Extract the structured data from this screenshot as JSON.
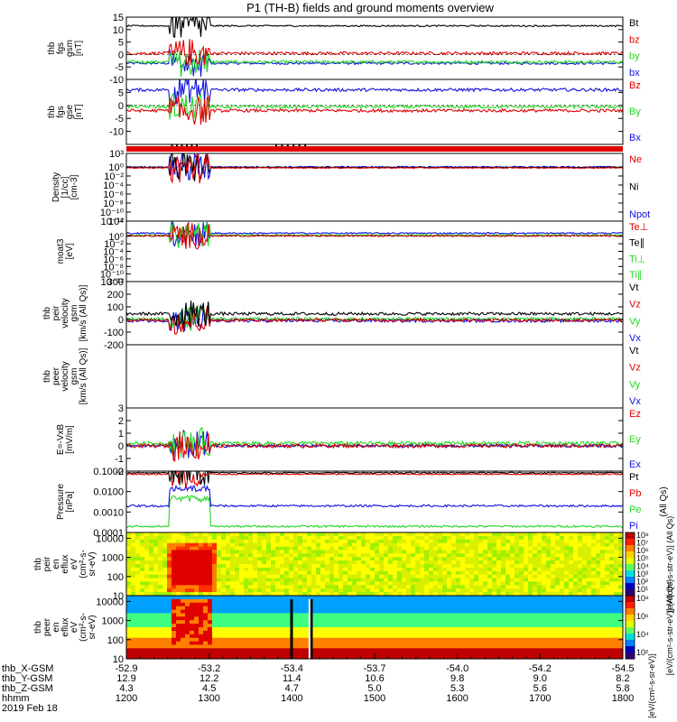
{
  "title": "P1 (TH-B) fields and ground moments overview",
  "colors": {
    "black": "#000000",
    "red": "#e00000",
    "green": "#22d822",
    "blue": "#1010e0"
  },
  "chart_data": [
    {
      "id": "fgs_gsm",
      "type": "line",
      "ylabel_lines": [
        "thb",
        "fgs",
        "gsm",
        "[nT]"
      ],
      "ylim": [
        -10,
        15
      ],
      "yticks": [
        "15",
        "10",
        "5",
        "0",
        "-5",
        "-10"
      ],
      "yticks_values": [
        15,
        10,
        5,
        0,
        -5,
        -10
      ],
      "legend": [
        {
          "label": "Bt",
          "color": "black"
        },
        {
          "label": "bz",
          "color": "red"
        },
        {
          "label": "by",
          "color": "green"
        },
        {
          "label": "bx",
          "color": "blue"
        }
      ],
      "series": [
        {
          "name": "bx",
          "color": "blue",
          "base": -3.5,
          "noise": 0.5
        },
        {
          "name": "by",
          "color": "green",
          "base": -3,
          "noise": 0.6
        },
        {
          "name": "bz",
          "color": "red",
          "base": 0.5,
          "noise": 0.6
        },
        {
          "name": "Bt",
          "color": "black",
          "base": 11.5,
          "noise": 0.3
        }
      ]
    },
    {
      "id": "fgs_gse",
      "type": "line",
      "ylabel_lines": [
        "thb",
        "fgs",
        "gse",
        "[nT]"
      ],
      "ylim": [
        -15,
        10
      ],
      "yticks": [
        "5",
        "0",
        "-5",
        "-10"
      ],
      "yticks_values": [
        5,
        0,
        -5,
        -10
      ],
      "legend": [
        {
          "label": "Bz",
          "color": "red"
        },
        {
          "label": "By",
          "color": "green"
        },
        {
          "label": "Bx",
          "color": "blue"
        }
      ],
      "series": [
        {
          "name": "Bx",
          "color": "blue",
          "base": 6,
          "noise": 0.6
        },
        {
          "name": "By",
          "color": "green",
          "base": -0.5,
          "noise": 0.6
        },
        {
          "name": "Bz",
          "color": "red",
          "base": -2,
          "noise": 0.6
        }
      ]
    },
    {
      "id": "quality_bar",
      "type": "bar",
      "ylabel_lines": [],
      "color": "red"
    },
    {
      "id": "density",
      "type": "line",
      "log": true,
      "ylabel_lines": [
        "Density",
        "[1/cc]",
        "[cm-3]"
      ],
      "ylim": [
        -12,
        3
      ],
      "yticks": [
        "10³",
        "10⁰",
        "10⁻²",
        "10⁻⁴",
        "10⁻⁶",
        "10⁻⁸",
        "10⁻¹⁰",
        "10⁻¹²"
      ],
      "yticks_values": [
        3,
        0,
        -2,
        -4,
        -6,
        -8,
        -10,
        -12
      ],
      "legend": [
        {
          "label": "Ne",
          "color": "red"
        },
        {
          "label": "Ni",
          "color": "black"
        },
        {
          "label": "Npot",
          "color": "blue"
        }
      ],
      "series": [
        {
          "name": "Npot",
          "color": "blue",
          "base": 0,
          "noise": 0.15
        },
        {
          "name": "Ni",
          "color": "black",
          "base": -0.1,
          "noise": 0.1
        },
        {
          "name": "Ne",
          "color": "red",
          "base": -0.2,
          "noise": 0.1
        }
      ]
    },
    {
      "id": "temperature",
      "type": "line",
      "log": true,
      "ylabel_lines": [
        "moat3",
        "[eV]"
      ],
      "ylim": [
        -12,
        4
      ],
      "yticks": [
        "10⁴",
        "10⁰",
        "10⁻²",
        "10⁻⁴",
        "10⁻⁶",
        "10⁻⁸",
        "10⁻¹⁰",
        "10⁻¹²"
      ],
      "yticks_values": [
        4,
        0,
        -2,
        -4,
        -6,
        -8,
        -10,
        -12
      ],
      "legend": [
        {
          "label": "Te⊥",
          "color": "red"
        },
        {
          "label": "Te∥",
          "color": "black"
        },
        {
          "label": "Ti⊥",
          "color": "green"
        },
        {
          "label": "Ti∥",
          "color": "green"
        }
      ],
      "series": [
        {
          "name": "Ti",
          "color": "blue",
          "base": 0.8,
          "noise": 0.2
        },
        {
          "name": "Te",
          "color": "green",
          "base": 0.3,
          "noise": 0.2
        },
        {
          "name": "Te2",
          "color": "red",
          "base": 0.1,
          "noise": 0.2
        }
      ]
    },
    {
      "id": "peir_velocity",
      "type": "line",
      "ylabel_lines": [
        "thb",
        "peir",
        "velocity",
        "gsm",
        "[km/s (All Qs)]"
      ],
      "ylim": [
        -200,
        300
      ],
      "yticks": [
        "300",
        "200",
        "100",
        "0",
        "-100",
        "-200"
      ],
      "yticks_values": [
        300,
        200,
        100,
        0,
        -100,
        -200
      ],
      "legend": [
        {
          "label": "Vt",
          "color": "black"
        },
        {
          "label": "Vz",
          "color": "red"
        },
        {
          "label": "Vy",
          "color": "green"
        },
        {
          "label": "Vx",
          "color": "blue"
        }
      ],
      "series": [
        {
          "name": "Vx",
          "color": "blue",
          "base": -10,
          "noise": 12
        },
        {
          "name": "Vy",
          "color": "green",
          "base": 5,
          "noise": 12
        },
        {
          "name": "Vz",
          "color": "red",
          "base": -5,
          "noise": 12
        },
        {
          "name": "Vt",
          "color": "black",
          "base": 45,
          "noise": 12
        }
      ]
    },
    {
      "id": "peer_velocity",
      "type": "empty",
      "ylabel_lines": [
        "thb",
        "peer",
        "velocity",
        "gsm",
        "[km/s (All Qs)]"
      ],
      "legend": [
        {
          "label": "Vt",
          "color": "black"
        },
        {
          "label": "Vz",
          "color": "red"
        },
        {
          "label": "Vy",
          "color": "green"
        },
        {
          "label": "Vx",
          "color": "blue"
        }
      ]
    },
    {
      "id": "efield",
      "type": "line",
      "ylabel_lines": [
        "E=-VxB",
        "[mV/m]"
      ],
      "ylim": [
        -2,
        3
      ],
      "yticks": [
        "3",
        "2",
        "1",
        "0",
        "-1",
        "-2"
      ],
      "yticks_values": [
        3,
        2,
        1,
        0,
        -1,
        -2
      ],
      "legend": [
        {
          "label": "Ez",
          "color": "red"
        },
        {
          "label": "Ey",
          "color": "green"
        },
        {
          "label": "Ex",
          "color": "blue"
        }
      ],
      "series": [
        {
          "name": "Ex",
          "color": "blue",
          "base": 0,
          "noise": 0.12
        },
        {
          "name": "Ey",
          "color": "green",
          "base": 0.2,
          "noise": 0.15
        },
        {
          "name": "Ez",
          "color": "red",
          "base": 0,
          "noise": 0.15
        }
      ]
    },
    {
      "id": "pressure",
      "type": "line",
      "log": true,
      "ylabel_lines": [
        "Pressure",
        "[nPa]"
      ],
      "ylim": [
        -4,
        -1
      ],
      "yticks": [
        "0.1000",
        "0.0100",
        "0.0010",
        "0.0001"
      ],
      "yticks_values": [
        -1,
        -2,
        -3,
        -4
      ],
      "legend": [
        {
          "label": "Pt",
          "color": "black"
        },
        {
          "label": "Pb",
          "color": "red"
        },
        {
          "label": "Pe",
          "color": "green"
        },
        {
          "label": "Pi",
          "color": "blue"
        }
      ],
      "right_label": "(All Qs)",
      "series": [
        {
          "name": "Pe",
          "color": "green",
          "base": -3.7,
          "noise": 0.05
        },
        {
          "name": "Pi",
          "color": "blue",
          "base": -2.7,
          "noise": 0.05
        },
        {
          "name": "Pb",
          "color": "red",
          "base": -1.15,
          "noise": 0.03
        },
        {
          "name": "Pt",
          "color": "black",
          "base": -1.08,
          "noise": 0.03
        }
      ]
    },
    {
      "id": "peir_eflux",
      "type": "heatmap",
      "ylabel_lines": [
        "thb",
        "peir",
        "en",
        "eflux",
        "eV",
        "(cm²-s-",
        "sr-eV)"
      ],
      "ylim": [
        1,
        4.3
      ],
      "yticks": [
        "10000",
        "1000",
        "100",
        "10"
      ],
      "yticks_values": [
        4,
        3,
        2,
        1
      ],
      "colorbar_ticks": [
        "10⁸",
        "10⁷",
        "10⁶",
        "10⁵",
        "10⁴",
        "10³",
        "10²",
        "10¹"
      ],
      "colorbar_label": "[eV/(cm²-s-str-eV)] (All Qs)"
    },
    {
      "id": "peer_eflux",
      "type": "heatmap",
      "ylabel_lines": [
        "thb",
        "peer",
        "en",
        "eflux",
        "eV",
        "(cm²-s-",
        "sr-eV)"
      ],
      "ylim": [
        1,
        4.3
      ],
      "yticks": [
        "10000",
        "1000",
        "100",
        "10"
      ],
      "yticks_values": [
        4,
        3,
        2,
        1
      ],
      "colorbar_ticks": [
        "10⁸",
        "10⁶",
        "10⁴",
        "10²"
      ],
      "colorbar_label": "[eV/(cm²-s-str-eV)] (All Qs)"
    }
  ],
  "x_axis": {
    "rows": [
      {
        "label": "thb_X-GSM",
        "values": [
          "-52.9",
          "-53.2",
          "-53.4",
          "-53.7",
          "-54.0",
          "-54.2",
          "-54.5"
        ]
      },
      {
        "label": "thb_Y-GSM",
        "values": [
          "12.9",
          "12.2",
          "11.4",
          "10.6",
          "9.8",
          "9.0",
          "8.2"
        ]
      },
      {
        "label": "thb_Z-GSM",
        "values": [
          "4.3",
          "4.5",
          "4.7",
          "5.0",
          "5.3",
          "5.6",
          "5.8"
        ]
      },
      {
        "label": "hhmm",
        "values": [
          "1200",
          "1300",
          "1400",
          "1500",
          "1600",
          "1700",
          "1800"
        ]
      }
    ],
    "date": "2019 Feb 18",
    "colorbar_footer": "[eV/(cm²-s-sr-eV)]"
  }
}
